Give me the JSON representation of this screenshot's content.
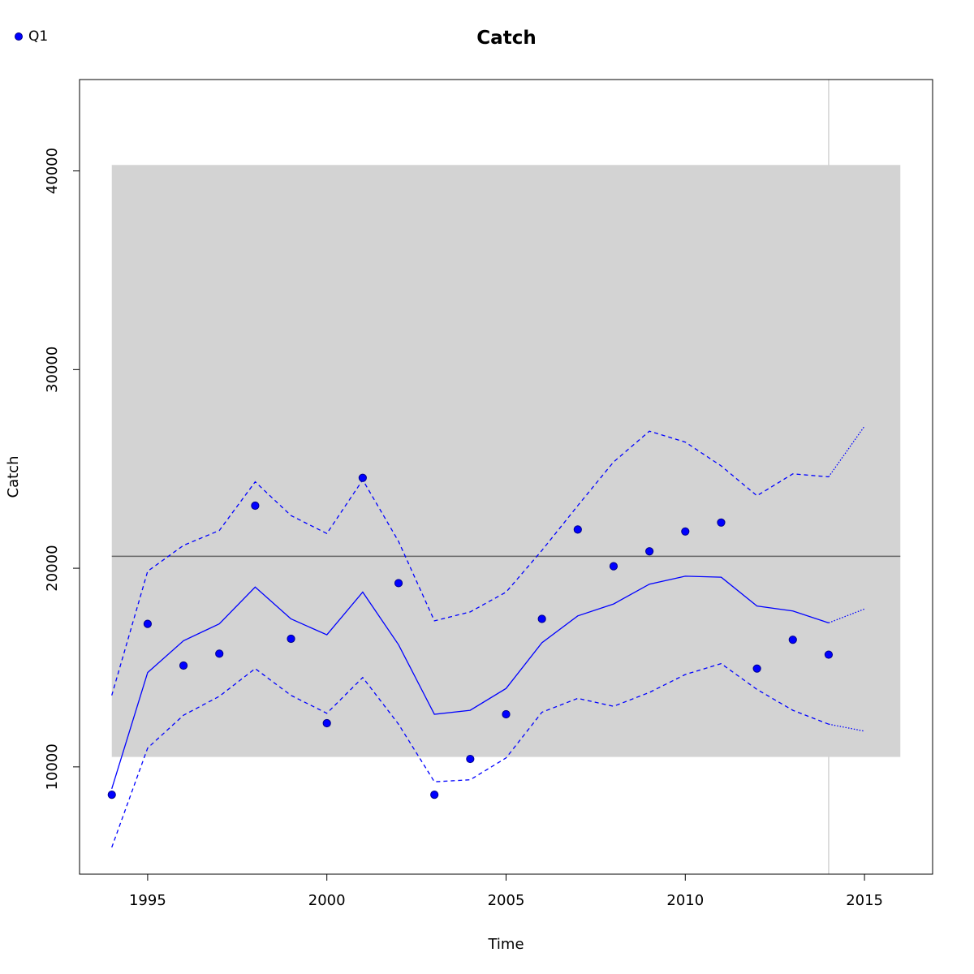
{
  "chart_data": {
    "type": "line",
    "title": "Catch",
    "xlabel": "Time",
    "ylabel": "Catch",
    "xlim": [
      1993.1,
      2016.9
    ],
    "ylim": [
      4600,
      44600
    ],
    "x_ticks": [
      1995,
      2000,
      2005,
      2010,
      2015
    ],
    "y_ticks": [
      10000,
      20000,
      30000,
      40000
    ],
    "legend": {
      "position": "top-left",
      "entries": [
        {
          "name": "Q1",
          "color": "#0000ff",
          "marker": "point"
        }
      ]
    },
    "colors": {
      "series": "#0000ff",
      "band": "#d3d3d3",
      "hline": "#666666",
      "vline": "#d3d3d3",
      "point_border": "#00008b"
    },
    "shaded_band": {
      "x": [
        1994,
        2016
      ],
      "y": [
        10500,
        40300
      ]
    },
    "reference_hline": 20600,
    "reference_vline": 2014,
    "series": [
      {
        "name": "Q1",
        "kind": "observed_points",
        "x": [
          1994,
          1995,
          1996,
          1997,
          1998,
          1999,
          2000,
          2001,
          2002,
          2003,
          2004,
          2005,
          2006,
          2007,
          2008,
          2009,
          2010,
          2011,
          2012,
          2013,
          2014
        ],
        "values": [
          8600,
          17200,
          15100,
          15700,
          23150,
          16450,
          12200,
          24550,
          19250,
          8600,
          10400,
          12650,
          17450,
          21950,
          20100,
          20850,
          21850,
          22300,
          14950,
          16400,
          15650
        ]
      },
      {
        "kind": "fit",
        "line_style": "solid",
        "x": [
          1994,
          1995,
          1996,
          1997,
          1998,
          1999,
          2000,
          2001,
          2002,
          2003,
          2004,
          2005,
          2006,
          2007,
          2008,
          2009,
          2010,
          2011,
          2012,
          2013,
          2014
        ],
        "values": [
          8900,
          14750,
          16350,
          17200,
          19050,
          17450,
          16650,
          18800,
          16150,
          12650,
          12850,
          13950,
          16250,
          17600,
          18200,
          19200,
          19600,
          19550,
          18100,
          17850,
          17250
        ]
      },
      {
        "kind": "upper_bound",
        "line_style": "dashed",
        "x": [
          1994,
          1995,
          1996,
          1997,
          1998,
          1999,
          2000,
          2001,
          2002,
          2003,
          2004,
          2005,
          2006,
          2007,
          2008,
          2009,
          2010,
          2011,
          2012,
          2013,
          2014
        ],
        "values": [
          13600,
          19850,
          21150,
          21900,
          24350,
          22650,
          21750,
          24450,
          21350,
          17350,
          17800,
          18800,
          20900,
          23150,
          25350,
          26900,
          26350,
          25150,
          23650,
          24750,
          24600
        ]
      },
      {
        "kind": "lower_bound",
        "line_style": "dashed",
        "x": [
          1994,
          1995,
          1996,
          1997,
          1998,
          1999,
          2000,
          2001,
          2002,
          2003,
          2004,
          2005,
          2006,
          2007,
          2008,
          2009,
          2010,
          2011,
          2012,
          2013,
          2014
        ],
        "values": [
          5950,
          10950,
          12600,
          13550,
          14950,
          13600,
          12700,
          14500,
          12150,
          9250,
          9350,
          10450,
          12750,
          13450,
          13050,
          13750,
          14650,
          15200,
          13900,
          12850,
          12150
        ]
      },
      {
        "kind": "forecast",
        "line_style": "dotted",
        "x": [
          2014,
          2015
        ],
        "values": [
          17250,
          17950
        ]
      },
      {
        "kind": "forecast_upper",
        "line_style": "dotted",
        "x": [
          2014,
          2015
        ],
        "values": [
          24600,
          27150
        ]
      },
      {
        "kind": "forecast_lower",
        "line_style": "dotted",
        "x": [
          2014,
          2015
        ],
        "values": [
          12150,
          11800
        ]
      }
    ]
  }
}
